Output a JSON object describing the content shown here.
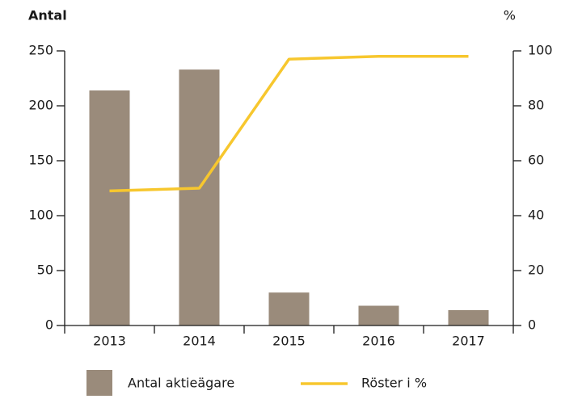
{
  "chart_data": {
    "type": "bar",
    "ylabel": "Antal",
    "y2label": "%",
    "categories": [
      "2013",
      "2014",
      "2015",
      "2016",
      "2017"
    ],
    "series": [
      {
        "name": "Antal aktieägare",
        "color": "#9a8b7b",
        "type": "bar",
        "values": [
          214,
          233,
          30,
          18,
          14
        ]
      },
      {
        "name": "Röster i %",
        "color": "#f7c72e",
        "type": "line",
        "axis": "y2",
        "values": [
          49,
          50,
          97,
          98,
          98
        ]
      }
    ],
    "ylim": [
      0,
      250
    ],
    "yticks": [
      0,
      50,
      100,
      150,
      200,
      250
    ],
    "y2lim": [
      0,
      100
    ],
    "y2ticks": [
      0,
      20,
      40,
      60,
      80,
      100
    ]
  }
}
